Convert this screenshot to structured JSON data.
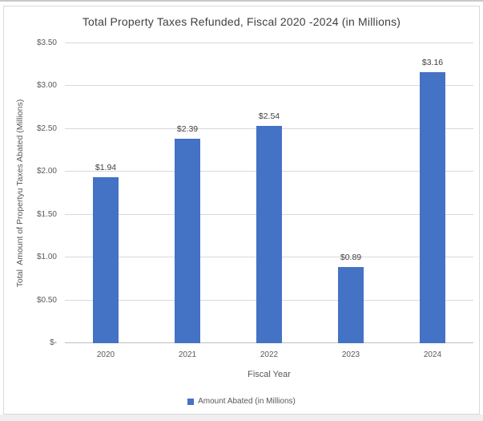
{
  "chart_data": {
    "type": "bar",
    "title": "Total Property Taxes Refunded, Fiscal 2020 -2024 (in Millions)",
    "categories": [
      "2020",
      "2021",
      "2022",
      "2023",
      "2024"
    ],
    "values": [
      1.94,
      2.39,
      2.54,
      0.89,
      3.16
    ],
    "data_labels": [
      "$1.94",
      "$2.39",
      "$2.54",
      "$0.89",
      "$3.16"
    ],
    "xlabel": "Fiscal Year",
    "ylabel": "Total  Amount of Propertyu Taxes Abated (Millions)",
    "ylim": [
      0,
      3.5
    ],
    "ytick_step": 0.5,
    "ytick_labels": [
      "$-",
      "$0.50",
      "$1.00",
      "$1.50",
      "$2.00",
      "$2.50",
      "$3.00",
      "$3.50"
    ],
    "grid": true,
    "legend": {
      "position": "bottom",
      "entries": [
        {
          "label": "Amount Abated (in Millions)",
          "color": "#4472C4"
        }
      ]
    }
  },
  "colors": {
    "bar": "#4472C4",
    "gridline": "#D9D9D9",
    "axis_line": "#BFBFBF",
    "tick_text": "#595959",
    "title_text": "#404040",
    "frame_border": "#D9D9D9",
    "background": "#FFFFFF"
  }
}
